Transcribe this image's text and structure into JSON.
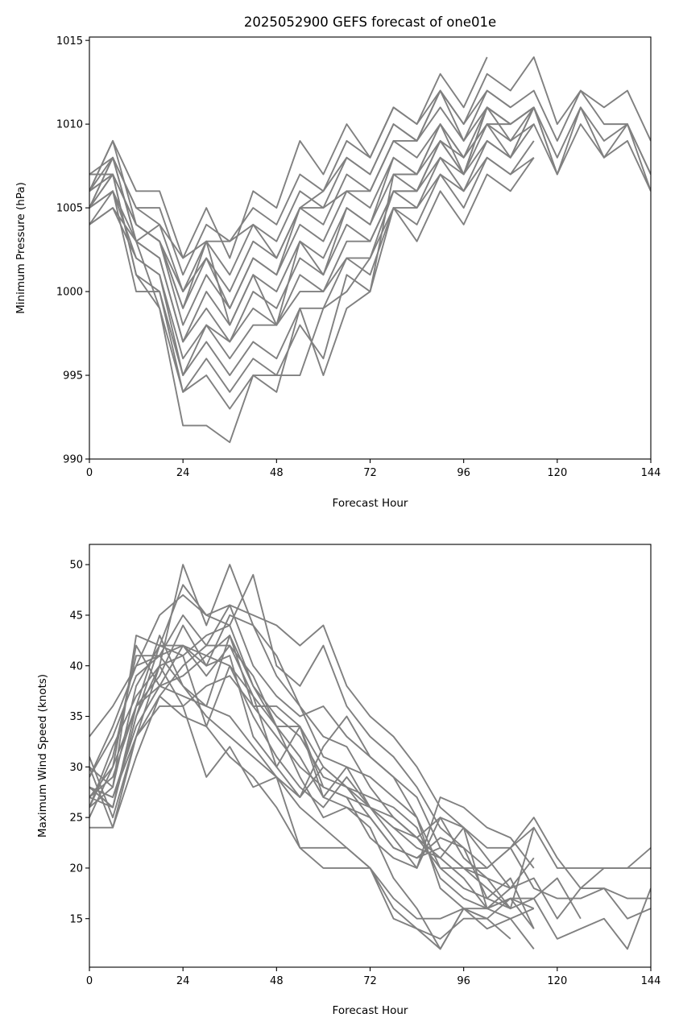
{
  "chart_data": [
    {
      "type": "line",
      "title": "2025052900 GEFS forecast of one01e",
      "xlabel": "Forecast Hour",
      "ylabel": "Minimum Pressure (hPa)",
      "xlim": [
        0,
        144
      ],
      "ylim": [
        990,
        1015.2
      ],
      "xticks": [
        0,
        24,
        48,
        72,
        96,
        120,
        144
      ],
      "yticks": [
        990,
        995,
        1000,
        1005,
        1010,
        1015
      ],
      "grid": false,
      "line_color": "#808080",
      "x": [
        0,
        6,
        12,
        18,
        24,
        30,
        36,
        42,
        48,
        54,
        60,
        66,
        72,
        78,
        84,
        90,
        96,
        102,
        108,
        114,
        120,
        126,
        132,
        138,
        144
      ],
      "series": [
        {
          "values": [
            1006,
            1009,
            1006,
            1006,
            1002,
            1005,
            1002,
            1006,
            1005,
            1009,
            1007,
            1010,
            1008,
            1011,
            1010,
            1013,
            1011,
            1014,
            null,
            null,
            null,
            null,
            null,
            null,
            null
          ]
        },
        {
          "values": [
            1007,
            1008,
            1005,
            1005,
            1001,
            1004,
            1003,
            1005,
            1004,
            1007,
            1006,
            1009,
            1008,
            1011,
            1010,
            1012,
            1010,
            1013,
            1012,
            1014,
            1010,
            1012,
            1011,
            1012,
            1009
          ]
        },
        {
          "values": [
            1006,
            1008,
            1005,
            1004,
            1000,
            1003,
            1001,
            1004,
            1003,
            1006,
            1005,
            1008,
            1007,
            1010,
            1009,
            1011,
            1009,
            1012,
            1011,
            1012,
            1009,
            1012,
            1010,
            1010,
            1007
          ]
        },
        {
          "values": [
            1005,
            1007,
            1004,
            1003,
            999,
            1002,
            1000,
            1003,
            1002,
            1005,
            1004,
            1007,
            1006,
            1009,
            1008,
            1010,
            1008,
            1011,
            1010,
            1011,
            1008,
            1011,
            1009,
            1010,
            1006
          ]
        },
        {
          "values": [
            1006,
            1007,
            1004,
            1003,
            998,
            1001,
            999,
            1002,
            1001,
            1004,
            1003,
            1006,
            1005,
            1008,
            1007,
            1010,
            1008,
            1010,
            1010,
            1011,
            1007,
            1011,
            1008,
            1009,
            1006
          ]
        },
        {
          "values": [
            1005,
            1008,
            1003,
            1002,
            997,
            1000,
            998,
            1001,
            1000,
            1003,
            1002,
            1005,
            1004,
            1007,
            1006,
            1009,
            1007,
            1010,
            1009,
            1010,
            1007,
            1010,
            1008,
            1010,
            1007
          ]
        },
        {
          "values": [
            1004,
            1006,
            1003,
            1002,
            997,
            999,
            997,
            1000,
            999,
            1002,
            1001,
            1004,
            1003,
            1006,
            1006,
            1008,
            1007,
            1009,
            1008,
            1011,
            1007,
            null,
            null,
            null,
            null
          ]
        },
        {
          "values": [
            1005,
            1006,
            1002,
            1001,
            996,
            998,
            997,
            999,
            998,
            1001,
            1000,
            1003,
            1003,
            1006,
            1005,
            1008,
            1006,
            1009,
            1008,
            1010,
            null,
            null,
            null,
            null,
            null
          ]
        },
        {
          "values": [
            1004,
            1005,
            1002,
            1001,
            995,
            998,
            996,
            998,
            998,
            1000,
            1000,
            1002,
            1002,
            1005,
            1005,
            1007,
            1006,
            1008,
            1007,
            1009,
            null,
            null,
            null,
            null,
            null
          ]
        },
        {
          "values": [
            1006,
            1007,
            1001,
            1000,
            995,
            997,
            995,
            997,
            996,
            999,
            999,
            1002,
            1001,
            1005,
            1004,
            1007,
            1005,
            1008,
            1007,
            1008,
            null,
            null,
            null,
            null,
            null
          ]
        },
        {
          "values": [
            1005,
            1006,
            1000,
            1000,
            994,
            996,
            994,
            996,
            995,
            998,
            996,
            1001,
            1000,
            1005,
            1003,
            1006,
            1004,
            1007,
            1006,
            1008,
            null,
            null,
            null,
            null,
            null
          ]
        },
        {
          "values": [
            1007,
            1007,
            1001,
            999,
            992,
            992,
            991,
            995,
            995,
            995,
            999,
            1000,
            1002,
            1006,
            1006,
            1009,
            1008,
            1010,
            1008,
            1011,
            null,
            null,
            null,
            null,
            null
          ]
        },
        {
          "values": [
            1005,
            1008,
            1003,
            999,
            994,
            995,
            993,
            995,
            994,
            999,
            995,
            999,
            1000,
            1007,
            1007,
            1009,
            1007,
            1011,
            1010,
            1011,
            null,
            null,
            null,
            null,
            null
          ]
        },
        {
          "values": [
            1006,
            1009,
            1004,
            1003,
            1000,
            1002,
            999,
            1002,
            1001,
            1005,
            1006,
            1008,
            1007,
            1010,
            1009,
            1012,
            1009,
            1011,
            1010,
            1011,
            null,
            null,
            null,
            null,
            null
          ]
        },
        {
          "values": [
            1004,
            1005,
            1003,
            1004,
            1002,
            1003,
            1003,
            1004,
            1002,
            1005,
            1005,
            1006,
            1006,
            1009,
            1009,
            1012,
            1010,
            1012,
            1011,
            null,
            null,
            null,
            null,
            null,
            null
          ]
        },
        {
          "values": [
            1005,
            1007,
            1004,
            1003,
            999,
            1003,
            998,
            1001,
            998,
            1003,
            1001,
            1005,
            1004,
            1008,
            1007,
            1010,
            1007,
            1011,
            1009,
            1011,
            null,
            null,
            null,
            null,
            null
          ]
        }
      ]
    },
    {
      "type": "line",
      "title": "",
      "xlabel": "Forecast Hour",
      "ylabel": "Maximum Wind Speed (knots)",
      "xlim": [
        0,
        144
      ],
      "ylim": [
        10.2,
        52
      ],
      "xticks": [
        0,
        24,
        48,
        72,
        96,
        120,
        144
      ],
      "yticks": [
        15,
        20,
        25,
        30,
        35,
        40,
        45,
        50
      ],
      "grid": false,
      "line_color": "#808080",
      "x": [
        0,
        6,
        12,
        18,
        24,
        30,
        36,
        42,
        48,
        54,
        60,
        66,
        72,
        78,
        84,
        90,
        96,
        102,
        108,
        114,
        120,
        126,
        132,
        138,
        144
      ],
      "series": [
        {
          "values": [
            28,
            26,
            35,
            40,
            50,
            44,
            50,
            44,
            41,
            36,
            33,
            32,
            28,
            25,
            23,
            20,
            20,
            20,
            22,
            25,
            21,
            18,
            20,
            20,
            22
          ]
        },
        {
          "values": [
            33,
            36,
            40,
            45,
            47,
            45,
            46,
            45,
            44,
            42,
            44,
            38,
            35,
            33,
            30,
            26,
            24,
            22,
            22,
            24,
            20,
            20,
            20,
            20,
            20
          ]
        },
        {
          "values": [
            30,
            28,
            38,
            42,
            48,
            45,
            44,
            49,
            40,
            38,
            42,
            36,
            33,
            31,
            28,
            24,
            22,
            20,
            22,
            18,
            17,
            17,
            18,
            17,
            17
          ]
        },
        {
          "values": [
            29,
            33,
            39,
            41,
            45,
            42,
            46,
            40,
            37,
            35,
            36,
            33,
            31,
            29,
            27,
            22,
            20,
            19,
            18,
            19,
            15,
            18,
            18,
            15,
            16
          ]
        },
        {
          "values": [
            27,
            30,
            36,
            39,
            44,
            40,
            45,
            44,
            39,
            36,
            31,
            30,
            29,
            27,
            25,
            20,
            18,
            17,
            16,
            17,
            13,
            14,
            15,
            12,
            18
          ]
        },
        {
          "values": [
            26,
            32,
            37,
            40,
            41,
            43,
            44,
            38,
            35,
            33,
            29,
            28,
            27,
            26,
            24,
            19,
            17,
            16,
            17,
            17,
            19,
            15,
            null,
            null,
            null
          ]
        },
        {
          "values": [
            28,
            27,
            34,
            38,
            42,
            41,
            43,
            36,
            36,
            34,
            27,
            30,
            26,
            24,
            22,
            21,
            24,
            16,
            15,
            12,
            null,
            null,
            null,
            null,
            null
          ]
        },
        {
          "values": [
            31,
            25,
            33,
            37,
            40,
            42,
            42,
            39,
            34,
            29,
            25,
            26,
            25,
            22,
            21,
            23,
            22,
            17,
            19,
            14,
            null,
            null,
            null,
            null,
            null
          ]
        },
        {
          "values": [
            30,
            24,
            33,
            36,
            36,
            38,
            39,
            36,
            33,
            30,
            28,
            27,
            23,
            21,
            20,
            27,
            26,
            24,
            23,
            20,
            null,
            null,
            null,
            null,
            null
          ]
        },
        {
          "values": [
            27,
            29,
            36,
            38,
            39,
            41,
            40,
            35,
            31,
            28,
            26,
            29,
            26,
            23,
            20,
            25,
            24,
            21,
            18,
            21,
            null,
            null,
            null,
            null,
            null
          ]
        },
        {
          "values": [
            26,
            31,
            41,
            41,
            42,
            40,
            41,
            33,
            30,
            27,
            30,
            28,
            25,
            22,
            21,
            22,
            20,
            18,
            16,
            null,
            null,
            null,
            null,
            null,
            null
          ]
        },
        {
          "values": [
            25,
            30,
            42,
            38,
            37,
            36,
            35,
            32,
            29,
            27,
            32,
            35,
            31,
            29,
            25,
            18,
            16,
            16,
            17,
            14,
            null,
            null,
            null,
            null,
            null
          ]
        },
        {
          "values": [
            29,
            34,
            40,
            41,
            38,
            35,
            33,
            31,
            29,
            26,
            24,
            22,
            20,
            17,
            15,
            15,
            16,
            15,
            13,
            null,
            null,
            null,
            null,
            null,
            null
          ]
        },
        {
          "values": [
            24,
            24,
            31,
            37,
            35,
            34,
            31,
            29,
            26,
            22,
            22,
            22,
            20,
            16,
            14,
            13,
            15,
            15,
            17,
            16,
            null,
            null,
            null,
            null,
            null
          ]
        },
        {
          "values": [
            28,
            27,
            33,
            40,
            36,
            29,
            32,
            28,
            29,
            22,
            20,
            20,
            20,
            15,
            14,
            12,
            16,
            14,
            15,
            16,
            null,
            null,
            null,
            null,
            null
          ]
        },
        {
          "values": [
            26,
            28,
            43,
            42,
            42,
            39,
            42,
            37,
            34,
            31,
            27,
            26,
            24,
            19,
            16,
            12,
            16,
            15,
            null,
            null,
            null,
            null,
            null,
            null,
            null
          ]
        },
        {
          "values": [
            27,
            26,
            35,
            42,
            41,
            34,
            40,
            37,
            30,
            34,
            28,
            27,
            26,
            24,
            23,
            21,
            19,
            16,
            18,
            null,
            null,
            null,
            null,
            null,
            null
          ]
        },
        {
          "values": [
            28,
            26,
            36,
            43,
            38,
            36,
            43,
            38,
            34,
            34,
            30,
            28,
            26,
            25,
            23,
            25,
            21,
            19,
            16,
            24,
            null,
            null,
            null,
            null,
            null
          ]
        }
      ]
    }
  ]
}
